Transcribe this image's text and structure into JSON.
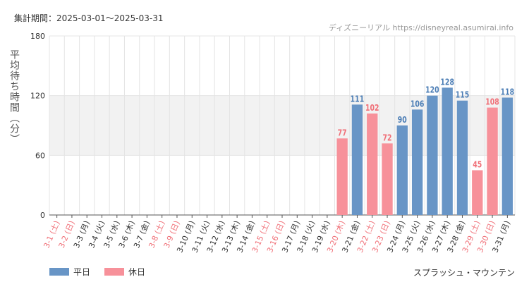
{
  "header": {
    "period": "集計期間：2025-03-01～2025-03-31",
    "source": "ディズニーリアル https://disneyreal.asumirai.info"
  },
  "footer": {
    "attraction": "スプラッシュ・マウンテン"
  },
  "colors": {
    "weekday": "#6895c6",
    "holiday": "#f7919a",
    "holiday_label": "#f07078",
    "weekday_label": "#333333",
    "band": "#f2f2f2",
    "grid": "#e4e4e4"
  },
  "chart_data": {
    "type": "bar",
    "ylabel": "平均待ち時間（分）",
    "xlabel": "",
    "ylim": [
      0,
      180
    ],
    "yticks": [
      0,
      60,
      120,
      180
    ],
    "highlight_band": [
      60,
      120
    ],
    "legend": [
      {
        "key": "weekday",
        "label": "平日"
      },
      {
        "key": "holiday",
        "label": "休日"
      }
    ],
    "categories": [
      "3-1 (土)",
      "3-2 (日)",
      "3-3 (月)",
      "3-4 (火)",
      "3-5 (水)",
      "3-6 (木)",
      "3-7 (金)",
      "3-8 (土)",
      "3-9 (日)",
      "3-10 (月)",
      "3-11 (火)",
      "3-12 (水)",
      "3-13 (木)",
      "3-14 (金)",
      "3-15 (土)",
      "3-16 (日)",
      "3-17 (月)",
      "3-18 (火)",
      "3-19 (水)",
      "3-20 (木)",
      "3-21 (金)",
      "3-22 (土)",
      "3-23 (日)",
      "3-24 (月)",
      "3-25 (火)",
      "3-26 (水)",
      "3-27 (木)",
      "3-28 (金)",
      "3-29 (土)",
      "3-30 (日)",
      "3-31 (月)"
    ],
    "day_types": [
      "holiday",
      "holiday",
      "weekday",
      "weekday",
      "weekday",
      "weekday",
      "weekday",
      "holiday",
      "holiday",
      "weekday",
      "weekday",
      "weekday",
      "weekday",
      "weekday",
      "holiday",
      "holiday",
      "weekday",
      "weekday",
      "weekday",
      "holiday",
      "weekday",
      "holiday",
      "holiday",
      "weekday",
      "weekday",
      "weekday",
      "weekday",
      "weekday",
      "holiday",
      "holiday",
      "weekday"
    ],
    "values": [
      null,
      null,
      null,
      null,
      null,
      null,
      null,
      null,
      null,
      null,
      null,
      null,
      null,
      null,
      null,
      null,
      null,
      null,
      null,
      77,
      111,
      102,
      72,
      90,
      106,
      120,
      128,
      115,
      45,
      108,
      118
    ]
  }
}
